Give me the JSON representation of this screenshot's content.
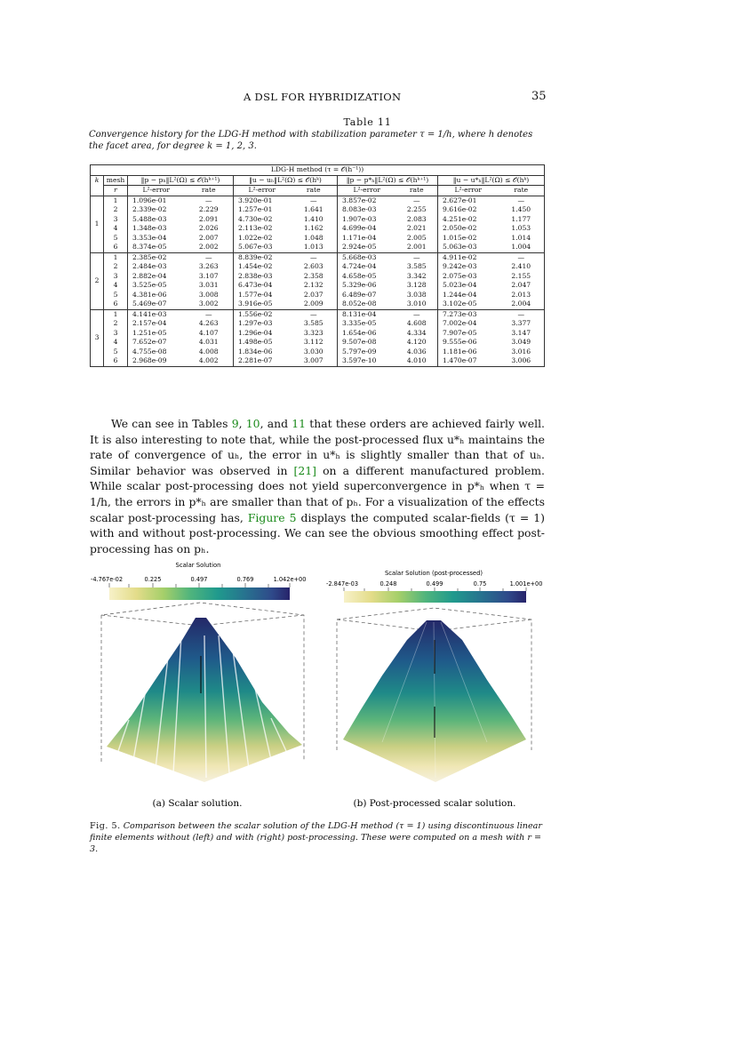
{
  "header": {
    "title": "A DSL FOR HYBRIDIZATION",
    "page_number": "35"
  },
  "table": {
    "label": "Table 11",
    "caption": "Convergence history for the LDG-H method with stabilization parameter τ = 1/h, where h denotes the facet area, for degree k = 1, 2, 3.",
    "method_header": "LDG-H method (τ = 𝒪(h⁻¹))",
    "col_k": "k",
    "col_mesh": "mesh",
    "col_r": "r",
    "groups": [
      "‖p − pₕ‖L²(Ω) ≤ 𝒪(hᵏ⁺¹)",
      "‖u − uₕ‖L²(Ω) ≤ 𝒪(hᵏ)",
      "‖p − p*ₕ‖L²(Ω) ≤ 𝒪(hᵏ⁺¹)",
      "‖u − u*ₕ‖L²(Ω) ≤ 𝒪(hᵏ)"
    ],
    "sub_error": "L²-error",
    "sub_rate": "rate",
    "blocks": [
      {
        "k": "1",
        "rows": [
          [
            "1",
            "1.096e-01",
            "—",
            "3.920e-01",
            "—",
            "3.857e-02",
            "—",
            "2.627e-01",
            "—"
          ],
          [
            "2",
            "2.339e-02",
            "2.229",
            "1.257e-01",
            "1.641",
            "8.083e-03",
            "2.255",
            "9.616e-02",
            "1.450"
          ],
          [
            "3",
            "5.488e-03",
            "2.091",
            "4.730e-02",
            "1.410",
            "1.907e-03",
            "2.083",
            "4.251e-02",
            "1.177"
          ],
          [
            "4",
            "1.348e-03",
            "2.026",
            "2.113e-02",
            "1.162",
            "4.699e-04",
            "2.021",
            "2.050e-02",
            "1.053"
          ],
          [
            "5",
            "3.353e-04",
            "2.007",
            "1.022e-02",
            "1.048",
            "1.171e-04",
            "2.005",
            "1.015e-02",
            "1.014"
          ],
          [
            "6",
            "8.374e-05",
            "2.002",
            "5.067e-03",
            "1.013",
            "2.924e-05",
            "2.001",
            "5.063e-03",
            "1.004"
          ]
        ]
      },
      {
        "k": "2",
        "rows": [
          [
            "1",
            "2.385e-02",
            "—",
            "8.839e-02",
            "—",
            "5.668e-03",
            "—",
            "4.911e-02",
            "—"
          ],
          [
            "2",
            "2.484e-03",
            "3.263",
            "1.454e-02",
            "2.603",
            "4.724e-04",
            "3.585",
            "9.242e-03",
            "2.410"
          ],
          [
            "3",
            "2.882e-04",
            "3.107",
            "2.838e-03",
            "2.358",
            "4.658e-05",
            "3.342",
            "2.075e-03",
            "2.155"
          ],
          [
            "4",
            "3.525e-05",
            "3.031",
            "6.473e-04",
            "2.132",
            "5.329e-06",
            "3.128",
            "5.023e-04",
            "2.047"
          ],
          [
            "5",
            "4.381e-06",
            "3.008",
            "1.577e-04",
            "2.037",
            "6.489e-07",
            "3.038",
            "1.244e-04",
            "2.013"
          ],
          [
            "6",
            "5.469e-07",
            "3.002",
            "3.916e-05",
            "2.009",
            "8.052e-08",
            "3.010",
            "3.102e-05",
            "2.004"
          ]
        ]
      },
      {
        "k": "3",
        "rows": [
          [
            "1",
            "4.141e-03",
            "—",
            "1.556e-02",
            "—",
            "8.131e-04",
            "—",
            "7.273e-03",
            "—"
          ],
          [
            "2",
            "2.157e-04",
            "4.263",
            "1.297e-03",
            "3.585",
            "3.335e-05",
            "4.608",
            "7.002e-04",
            "3.377"
          ],
          [
            "3",
            "1.251e-05",
            "4.107",
            "1.296e-04",
            "3.323",
            "1.654e-06",
            "4.334",
            "7.907e-05",
            "3.147"
          ],
          [
            "4",
            "7.652e-07",
            "4.031",
            "1.498e-05",
            "3.112",
            "9.507e-08",
            "4.120",
            "9.555e-06",
            "3.049"
          ],
          [
            "5",
            "4.755e-08",
            "4.008",
            "1.834e-06",
            "3.030",
            "5.797e-09",
            "4.036",
            "1.181e-06",
            "3.016"
          ],
          [
            "6",
            "2.968e-09",
            "4.002",
            "2.281e-07",
            "3.007",
            "3.597e-10",
            "4.010",
            "1.470e-07",
            "3.006"
          ]
        ]
      }
    ]
  },
  "paragraph": {
    "s1": "We can see in Tables ",
    "ref9": "9",
    "s2": ", ",
    "ref10": "10",
    "s3": ", and ",
    "ref11": "11",
    "s4": " that these orders are achieved fairly well. It is also interesting to note that, while the post-processed flux u*ₕ maintains the rate of convergence of uₕ, the error in u*ₕ is slightly smaller than that of uₕ. Similar behavior was observed in ",
    "ref21": "[21]",
    "s5": " on a different manufactured problem. While scalar post-processing does not yield superconvergence in p*ₕ when τ = 1/h, the errors in p*ₕ are smaller than that of pₕ. For a visualization of the effects scalar post-processing has, ",
    "reffig": "Figure 5",
    "s6": " displays the computed scalar-fields (τ = 1) with and without post-processing. We can see the obvious smoothing effect post-processing has on pₕ."
  },
  "figure": {
    "left": {
      "colorbar_title": "Scalar Solution",
      "ticks": [
        "-4.767e-02",
        "0.225",
        "0.497",
        "0.769",
        "1.042e+00"
      ],
      "subcaption": "(a) Scalar solution."
    },
    "right": {
      "colorbar_title": "Scalar Solution (post-processed)",
      "ticks": [
        "-2.847e-03",
        "0.248",
        "0.499",
        "0.75",
        "1.001e+00"
      ],
      "subcaption": "(b) Post-processed scalar solution."
    },
    "caption_label": "Fig. 5.",
    "caption_text": "Comparison between the scalar solution of the LDG-H method (τ = 1) using discontinuous linear finite elements without (left) and with (right) post-processing. These were computed on a mesh with r = 3.",
    "colors": {
      "low": "#f2ebb0",
      "mid": "#2a8c8a",
      "high": "#27286e"
    }
  }
}
